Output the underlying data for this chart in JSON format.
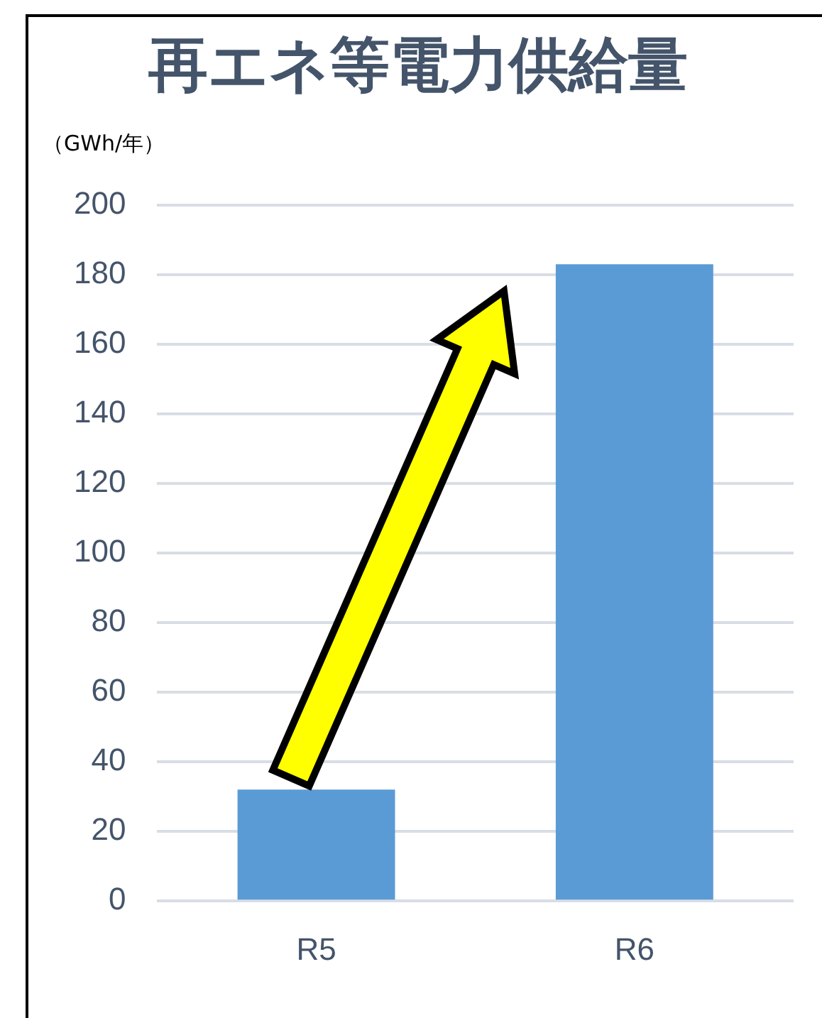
{
  "chart_data": {
    "type": "bar",
    "title": "再エネ等電力供給量",
    "ylabel": "（GWh/年）",
    "categories": [
      "R5",
      "R6"
    ],
    "values": [
      32,
      183
    ],
    "color": "#5b9bd5",
    "ylim": [
      0,
      200
    ],
    "yticks": [
      0,
      20,
      40,
      60,
      80,
      100,
      120,
      140,
      160,
      180,
      200
    ],
    "grid": "y"
  }
}
